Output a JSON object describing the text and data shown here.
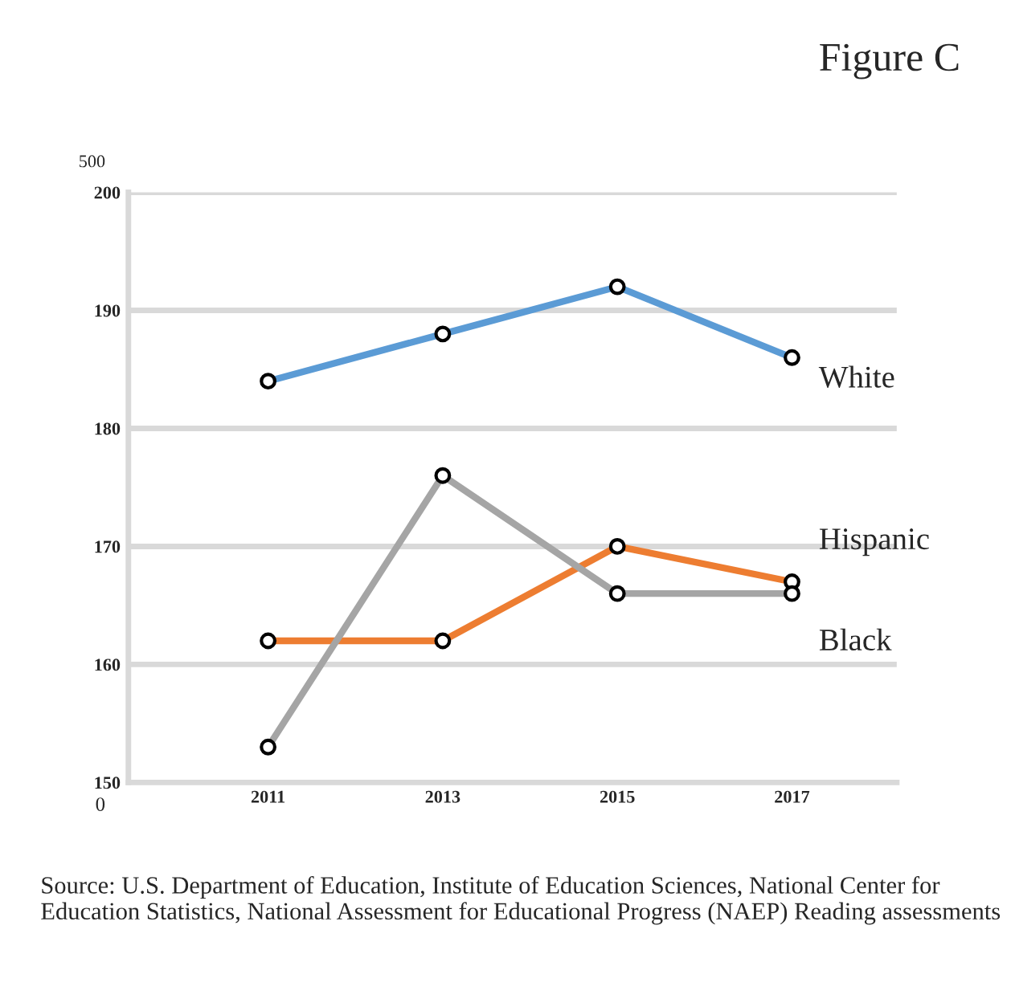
{
  "chart_data": {
    "type": "line",
    "title": "Figure C",
    "categories": [
      "2011",
      "2013",
      "2015",
      "2017"
    ],
    "series": [
      {
        "name": "White",
        "color": "#5b9bd5",
        "values": [
          184,
          188,
          192,
          186
        ]
      },
      {
        "name": "Hispanic",
        "color": "#ed7d31",
        "values": [
          162,
          162,
          170,
          167
        ]
      },
      {
        "name": "Black",
        "color": "#a5a5a5",
        "values": [
          153,
          176,
          166,
          166
        ]
      }
    ],
    "ylim": [
      150,
      200
    ],
    "yticks": [
      150,
      160,
      170,
      180,
      190,
      200
    ],
    "grid": "y",
    "marker": "circle",
    "line_style": "solid",
    "legend": false,
    "annotations": [
      "500",
      "0",
      "Source: U.S. Department of Education, Institute of Education Sciences, National Center for Education Statistics, National Assessment for Educational Progress (NAEP) Reading assessments"
    ]
  }
}
